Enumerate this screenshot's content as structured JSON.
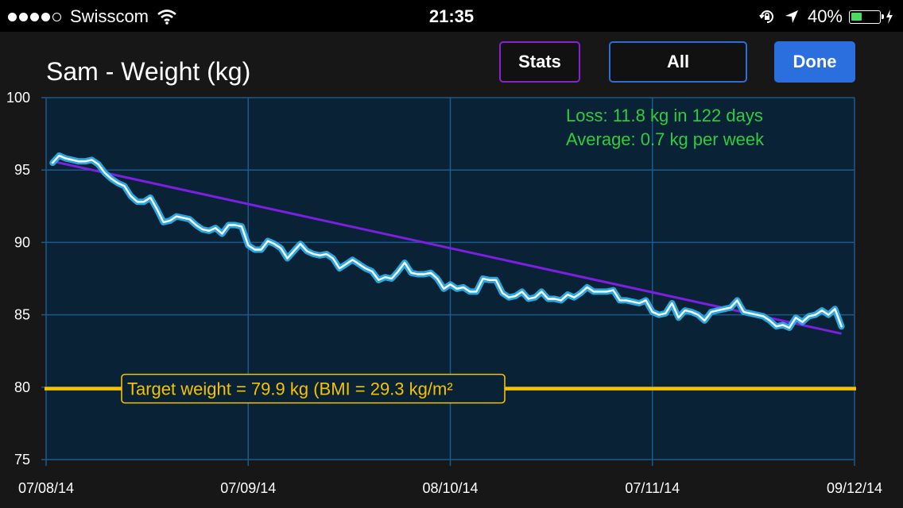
{
  "status_bar": {
    "carrier": "Swisscom",
    "signal_bars_filled": 4,
    "signal_bars_total": 5,
    "time": "21:35",
    "battery_percent_text": "40%",
    "battery_level": 0.4,
    "battery_color": "#4cd964"
  },
  "header": {
    "title": "Sam - Weight (kg)",
    "stats_label": "Stats",
    "all_label": "All",
    "done_label": "Done"
  },
  "chart_data": {
    "type": "line",
    "x_ticks": [
      "07/08/14",
      "07/09/14",
      "08/10/14",
      "07/11/14",
      "09/12/14"
    ],
    "y_ticks": [
      "100",
      "95",
      "90",
      "85",
      "80",
      "75"
    ],
    "ylim": [
      75,
      100
    ],
    "xlim": [
      0,
      124
    ],
    "grid": true,
    "stats": {
      "loss": "Loss: 11.8 kg in 122 days",
      "average": "Average: 0.7 kg per week"
    },
    "target": {
      "value": 79.9,
      "label": "Target weight = 79.9 kg (BMI = 29.3 kg/m²"
    },
    "trend": {
      "x": [
        1,
        122
      ],
      "y": [
        95.6,
        83.7
      ]
    },
    "series": [
      {
        "color": "#29a8e0",
        "x": [
          1,
          2,
          3,
          4,
          5,
          6,
          7,
          8,
          9,
          10,
          11,
          12,
          13,
          14,
          15,
          16,
          17,
          18,
          19,
          20,
          21,
          22,
          23,
          24,
          25,
          26,
          27,
          28,
          29,
          30,
          31,
          32,
          33,
          34,
          35,
          36,
          37,
          38,
          39,
          40,
          41,
          42,
          43,
          44,
          45,
          46,
          47,
          48,
          49,
          50,
          51,
          52,
          53,
          54,
          55,
          56,
          57,
          58,
          59,
          60,
          61,
          62,
          63,
          64,
          65,
          66,
          67,
          68,
          69,
          70,
          71,
          72,
          73,
          74,
          75,
          76,
          77,
          78,
          79,
          80,
          81,
          82,
          83,
          84,
          85,
          86,
          87,
          88,
          89,
          90,
          91,
          92,
          93,
          94,
          95,
          96,
          97,
          98,
          99,
          100,
          101,
          102,
          103,
          104,
          105,
          106,
          107,
          108,
          109,
          110,
          111,
          112,
          113,
          114,
          115,
          116,
          117,
          118,
          119,
          120,
          121,
          122
        ],
        "y": [
          95.5,
          96.0,
          95.8,
          95.7,
          95.6,
          95.6,
          95.7,
          95.4,
          94.8,
          94.4,
          94.1,
          93.9,
          93.2,
          92.8,
          92.8,
          93.1,
          92.3,
          91.4,
          91.5,
          91.8,
          91.7,
          91.6,
          91.2,
          90.9,
          90.8,
          91.0,
          90.6,
          91.2,
          91.2,
          91.1,
          89.8,
          89.5,
          89.5,
          90.1,
          89.9,
          89.6,
          88.9,
          89.4,
          89.9,
          89.4,
          89.2,
          89.1,
          89.2,
          88.9,
          88.2,
          88.5,
          88.8,
          88.5,
          88.2,
          88.0,
          87.4,
          87.6,
          87.5,
          88.0,
          88.6,
          87.9,
          87.8,
          87.8,
          87.9,
          87.5,
          86.8,
          87.1,
          86.8,
          86.9,
          86.6,
          86.6,
          87.5,
          87.4,
          87.4,
          86.5,
          86.2,
          86.3,
          86.6,
          86.1,
          86.2,
          86.6,
          86.1,
          86.1,
          86.0,
          86.4,
          86.2,
          86.5,
          86.9,
          86.6,
          86.6,
          86.6,
          86.7,
          86.0,
          86.0,
          85.9,
          85.8,
          86.0,
          85.2,
          85.0,
          85.1,
          85.8,
          84.8,
          85.3,
          85.2,
          85.0,
          84.6,
          85.2,
          85.3,
          85.4,
          85.5,
          86.0,
          85.2,
          85.1,
          85.0,
          84.9,
          84.6,
          84.2,
          84.3,
          84.1,
          84.8,
          84.5,
          84.9,
          85.0,
          85.3,
          85.0,
          85.4,
          84.2
        ]
      }
    ]
  },
  "colors": {
    "background": "#171717",
    "plot_background": "#0a2236",
    "grid": "#1a5a8c",
    "trend": "#7b1fe0",
    "target": "#f5c200",
    "stats_text": "#2ecc40"
  }
}
